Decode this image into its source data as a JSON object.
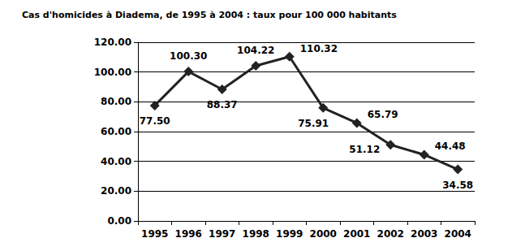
{
  "chart_data": {
    "type": "line",
    "title": "Cas d'homicides à Diadema, de 1995 à 2004 : taux pour 100 000 habitants",
    "categories": [
      "1995",
      "1996",
      "1997",
      "1998",
      "1999",
      "2000",
      "2001",
      "2002",
      "2003",
      "2004"
    ],
    "values": [
      77.5,
      100.3,
      88.37,
      104.22,
      110.32,
      75.91,
      65.79,
      51.12,
      44.48,
      34.58
    ],
    "value_labels": [
      "77.50",
      "100.30",
      "88.37",
      "104.22",
      "110.32",
      "75.91",
      "65.79",
      "51.12",
      "44.48",
      "34.58"
    ],
    "color": "#222222",
    "marker": "diamond",
    "line_style": "solid",
    "ylim": [
      0,
      120
    ],
    "yticks": [
      {
        "value": 0,
        "label": "0.00"
      },
      {
        "value": 20,
        "label": "20.00"
      },
      {
        "value": 40,
        "label": "40.00"
      },
      {
        "value": 60,
        "label": "60.00"
      },
      {
        "value": 80,
        "label": "80.00"
      },
      {
        "value": 100,
        "label": "100.00"
      },
      {
        "value": 120,
        "label": "120.00"
      }
    ],
    "grid": true,
    "data_labels": true
  }
}
